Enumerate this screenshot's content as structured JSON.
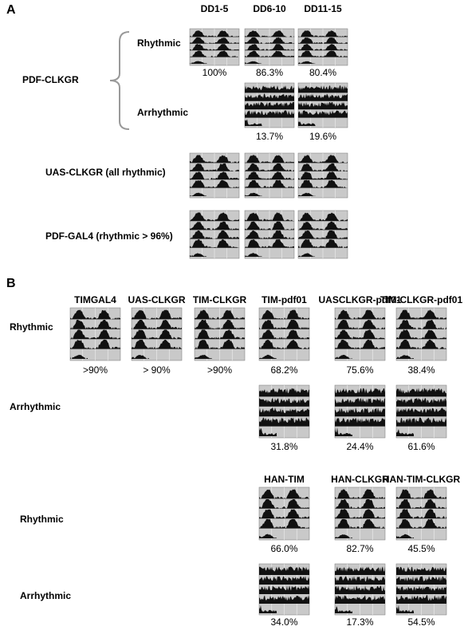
{
  "panel_a": {
    "label": "A",
    "columns": [
      "DD1-5",
      "DD6-10",
      "DD11-15"
    ],
    "group_label": "PDF-CLKGR",
    "rhythmic": {
      "label": "Rhythmic",
      "percentages": [
        "100%",
        "86.3%",
        "80.4%"
      ]
    },
    "arrhythmic": {
      "label": "Arrhythmic",
      "percentages": [
        "13.7%",
        "19.6%"
      ]
    },
    "controls": [
      "UAS-CLKGR (all rhythmic)",
      "PDF-GAL4 (rhythmic > 96%)"
    ]
  },
  "panel_b": {
    "label": "B",
    "columns_top": [
      "TIMGAL4",
      "UAS-CLKGR",
      "TIM-CLKGR",
      "TIM-pdf01",
      "UASCLKGR-pdf01",
      "TIM-CLKGR-pdf01"
    ],
    "rows_top": [
      {
        "label": "Rhythmic",
        "percentages": [
          ">90%",
          "> 90%",
          ">90%",
          "68.2%",
          "75.6%",
          "38.4%"
        ]
      },
      {
        "label": "Arrhythmic",
        "percentages": [
          "31.8%",
          "24.4%",
          "61.6%"
        ]
      }
    ],
    "columns_bottom": [
      "HAN-TIM",
      "HAN-CLKGR",
      "HAN-TIM-CLKGR"
    ],
    "rows_bottom": [
      {
        "label": "Rhythmic",
        "percentages": [
          "66.0%",
          "82.7%",
          "45.5%"
        ]
      },
      {
        "label": "Arrhythmic",
        "percentages": [
          "34.0%",
          "17.3%",
          "54.5%"
        ]
      }
    ]
  }
}
